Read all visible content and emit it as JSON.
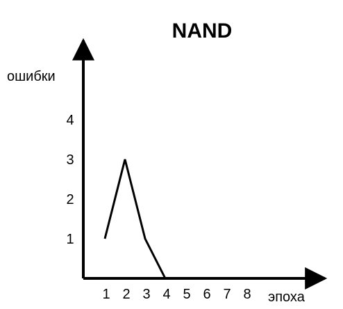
{
  "chart_data": {
    "type": "line",
    "title": "NAND",
    "xlabel": "эпоха",
    "ylabel": "ошибки",
    "x_ticks": [
      "1",
      "2",
      "3",
      "4",
      "5",
      "6",
      "7",
      "8"
    ],
    "y_ticks": [
      "1",
      "2",
      "3",
      "4"
    ],
    "x": [
      1,
      2,
      3,
      4
    ],
    "values": [
      1,
      3,
      1,
      0
    ],
    "xlim": [
      0,
      10
    ],
    "ylim": [
      0,
      5
    ],
    "grid": false,
    "line_color": "#000000",
    "axis_color": "#000000"
  }
}
